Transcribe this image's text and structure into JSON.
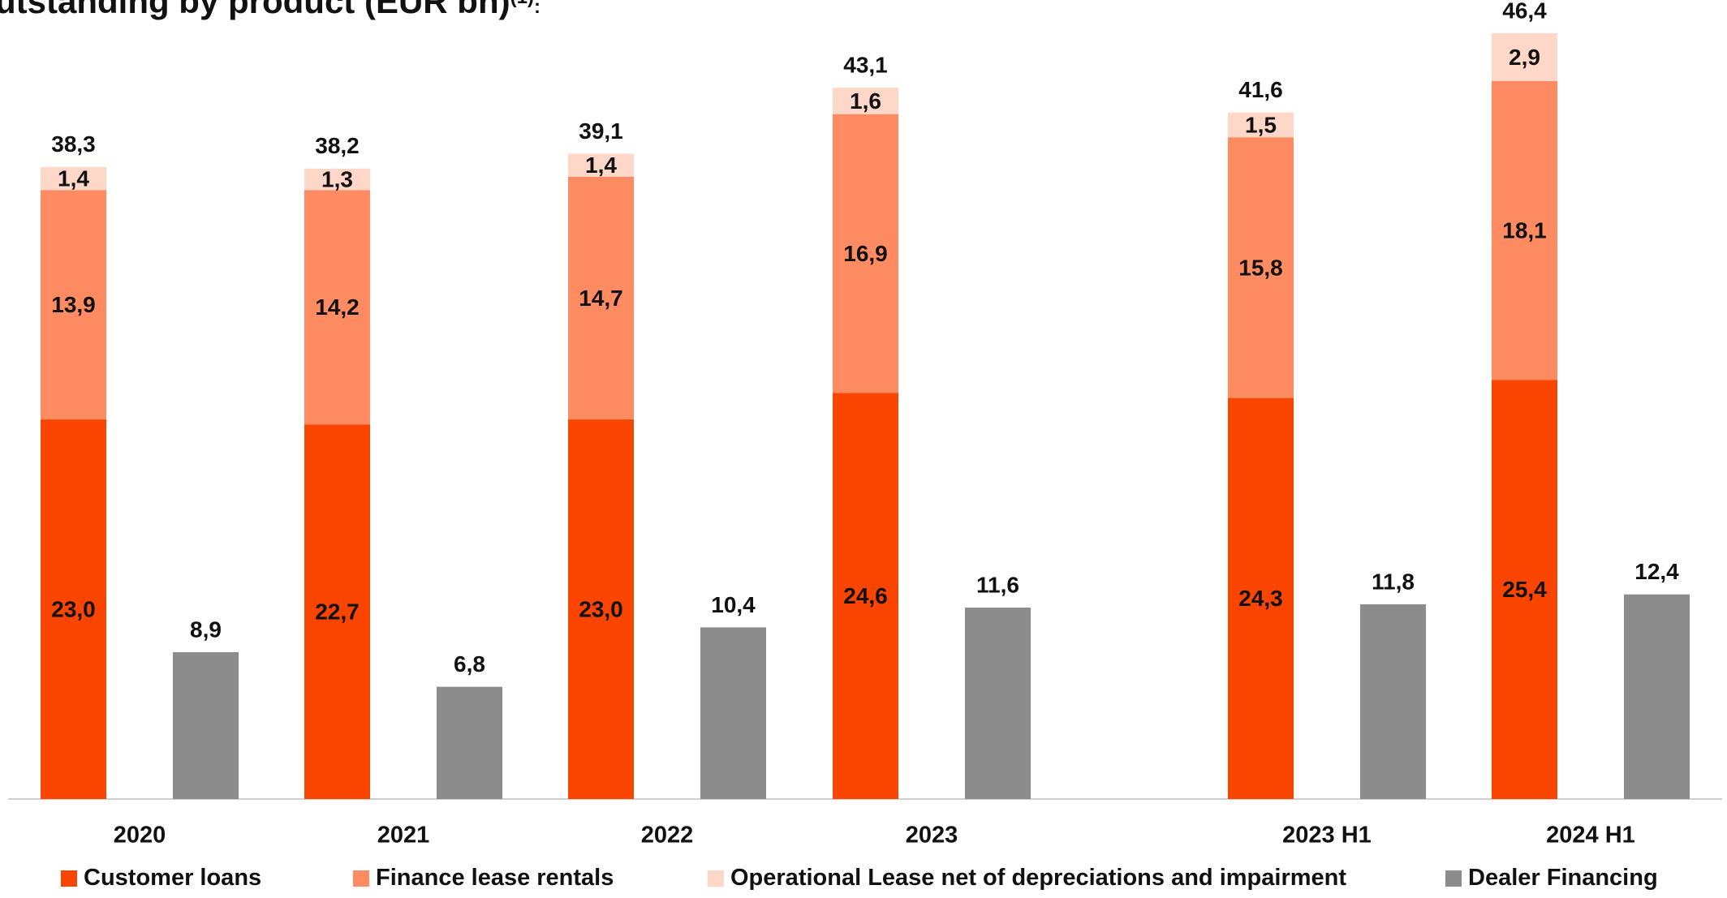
{
  "title_text": "utstanding by product (EUR bn)",
  "title_sup": "(1)",
  "title_suffix": ":",
  "colors": {
    "customer_loans": "#F94500",
    "finance_lease": "#FF8B62",
    "operational_lease": "#FFD7C8",
    "dealer_financing": "#8C8C8C",
    "axis": "#CFCFCF"
  },
  "legend": [
    {
      "label": "Customer loans",
      "color": "#F94500"
    },
    {
      "label": "Finance lease rentals",
      "color": "#FF8B62"
    },
    {
      "label": "Operational Lease net of depreciations and impairment",
      "color": "#FFD7C8"
    },
    {
      "label": "Dealer Financing",
      "color": "#8C8C8C"
    }
  ],
  "chart_data": {
    "type": "bar",
    "stacked": true,
    "title": "utstanding by product (EUR bn)",
    "categories": [
      "2020",
      "2021",
      "2022",
      "2023",
      "2023 H1",
      "2024 H1"
    ],
    "stacked_totals": [
      "38,3",
      "38,2",
      "39,1",
      "43,1",
      "41,6",
      "46,4"
    ],
    "series": [
      {
        "name": "Customer loans",
        "stack": "A",
        "values": [
          23.0,
          22.7,
          23.0,
          24.6,
          24.3,
          25.4
        ],
        "labels": [
          "23,0",
          "22,7",
          "23,0",
          "24,6",
          "24,3",
          "25,4"
        ]
      },
      {
        "name": "Finance lease rentals",
        "stack": "A",
        "values": [
          13.9,
          14.2,
          14.7,
          16.9,
          15.8,
          18.1
        ],
        "labels": [
          "13,9",
          "14,2",
          "14,7",
          "16,9",
          "15,8",
          "18,1"
        ]
      },
      {
        "name": "Operational Lease net of depreciations and impairment",
        "stack": "A",
        "values": [
          1.4,
          1.3,
          1.4,
          1.6,
          1.5,
          2.9
        ],
        "labels": [
          "1,4",
          "1,3",
          "1,4",
          "1,6",
          "1,5",
          "2,9"
        ]
      },
      {
        "name": "Dealer Financing",
        "stack": "B",
        "values": [
          8.9,
          6.8,
          10.4,
          11.6,
          11.8,
          12.4
        ],
        "labels": [
          "8,9",
          "6,8",
          "10,4",
          "11,6",
          "11,8",
          "12,4"
        ]
      }
    ],
    "ylim": [
      0,
      46.4
    ],
    "legend_position": "bottom",
    "grid": false
  }
}
